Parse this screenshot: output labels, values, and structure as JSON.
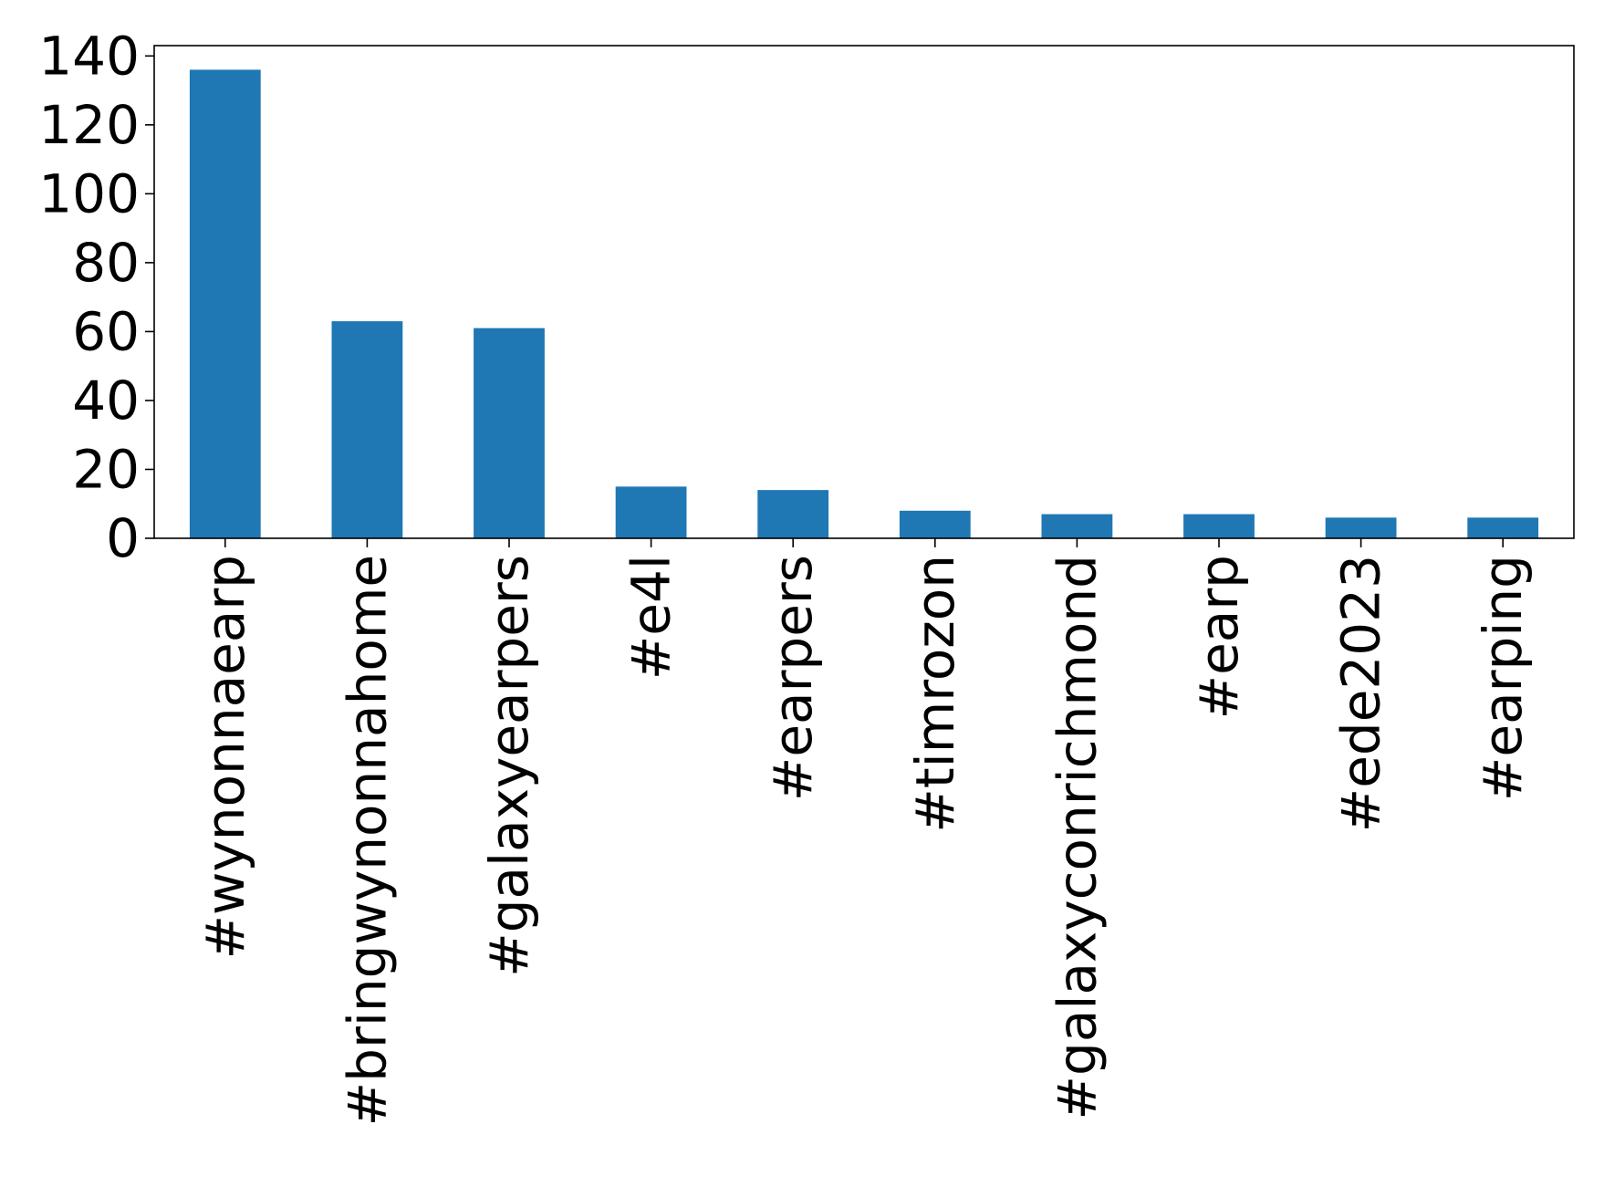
{
  "chart_data": {
    "type": "bar",
    "title": "",
    "xlabel": "",
    "ylabel": "",
    "categories": [
      "#wynonnaearp",
      "#bringwynonnahome",
      "#galaxyearpers",
      "#e4l",
      "#earpers",
      "#timrozon",
      "#galaxyconrichmond",
      "#earp",
      "#ede2023",
      "#earping"
    ],
    "values": [
      136,
      63,
      61,
      15,
      14,
      8,
      7,
      7,
      6,
      6
    ],
    "ylim": [
      0,
      143
    ],
    "yticks": [
      0,
      20,
      40,
      60,
      80,
      100,
      120,
      140
    ],
    "bar_color": "#1f77b4",
    "grid": false,
    "legend": "none"
  }
}
